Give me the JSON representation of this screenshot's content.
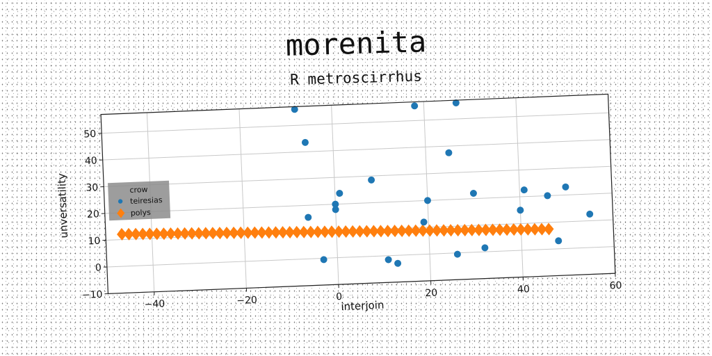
{
  "title": "morenita",
  "subtitle": "R metroscirrhus",
  "chart_data": {
    "type": "scatter",
    "xlabel": "interjoin",
    "ylabel": "unversatility",
    "xlim": [
      -50,
      60
    ],
    "ylim": [
      -10,
      57
    ],
    "xticks": [
      -40,
      -20,
      0,
      20,
      40,
      60
    ],
    "yticks": [
      -10,
      0,
      10,
      20,
      30,
      40,
      50
    ],
    "grid": true,
    "legend_position": "center-left",
    "legend": [
      "crow",
      "teiresias",
      "polys"
    ],
    "series": [
      {
        "name": "crow",
        "marker": "none",
        "color": "#555555",
        "points": []
      },
      {
        "name": "teiresias",
        "marker": "circle",
        "color": "#1f77b4",
        "points": [
          [
            -8,
            56
          ],
          [
            -6,
            43.5
          ],
          [
            -6,
            15.5
          ],
          [
            -3,
            -0.5
          ],
          [
            0,
            20
          ],
          [
            0,
            18
          ],
          [
            1,
            24
          ],
          [
            8,
            28.5
          ],
          [
            11,
            -1.5
          ],
          [
            13,
            -3
          ],
          [
            18,
            55.5
          ],
          [
            19,
            12
          ],
          [
            20,
            20
          ],
          [
            25,
            37.5
          ],
          [
            26,
            -0.5
          ],
          [
            27,
            56
          ],
          [
            30,
            22
          ],
          [
            32,
            1.5
          ],
          [
            40,
            15
          ],
          [
            41,
            22.5
          ],
          [
            46,
            20
          ],
          [
            48,
            3
          ],
          [
            50,
            23
          ],
          [
            55,
            12.5
          ]
        ]
      },
      {
        "name": "polys",
        "marker": "diamond",
        "color": "#ff7f0e",
        "line": {
          "x_start": -46.5,
          "x_end": 46,
          "y_start": 12,
          "y_end": 7.5,
          "count": 62
        }
      }
    ]
  }
}
